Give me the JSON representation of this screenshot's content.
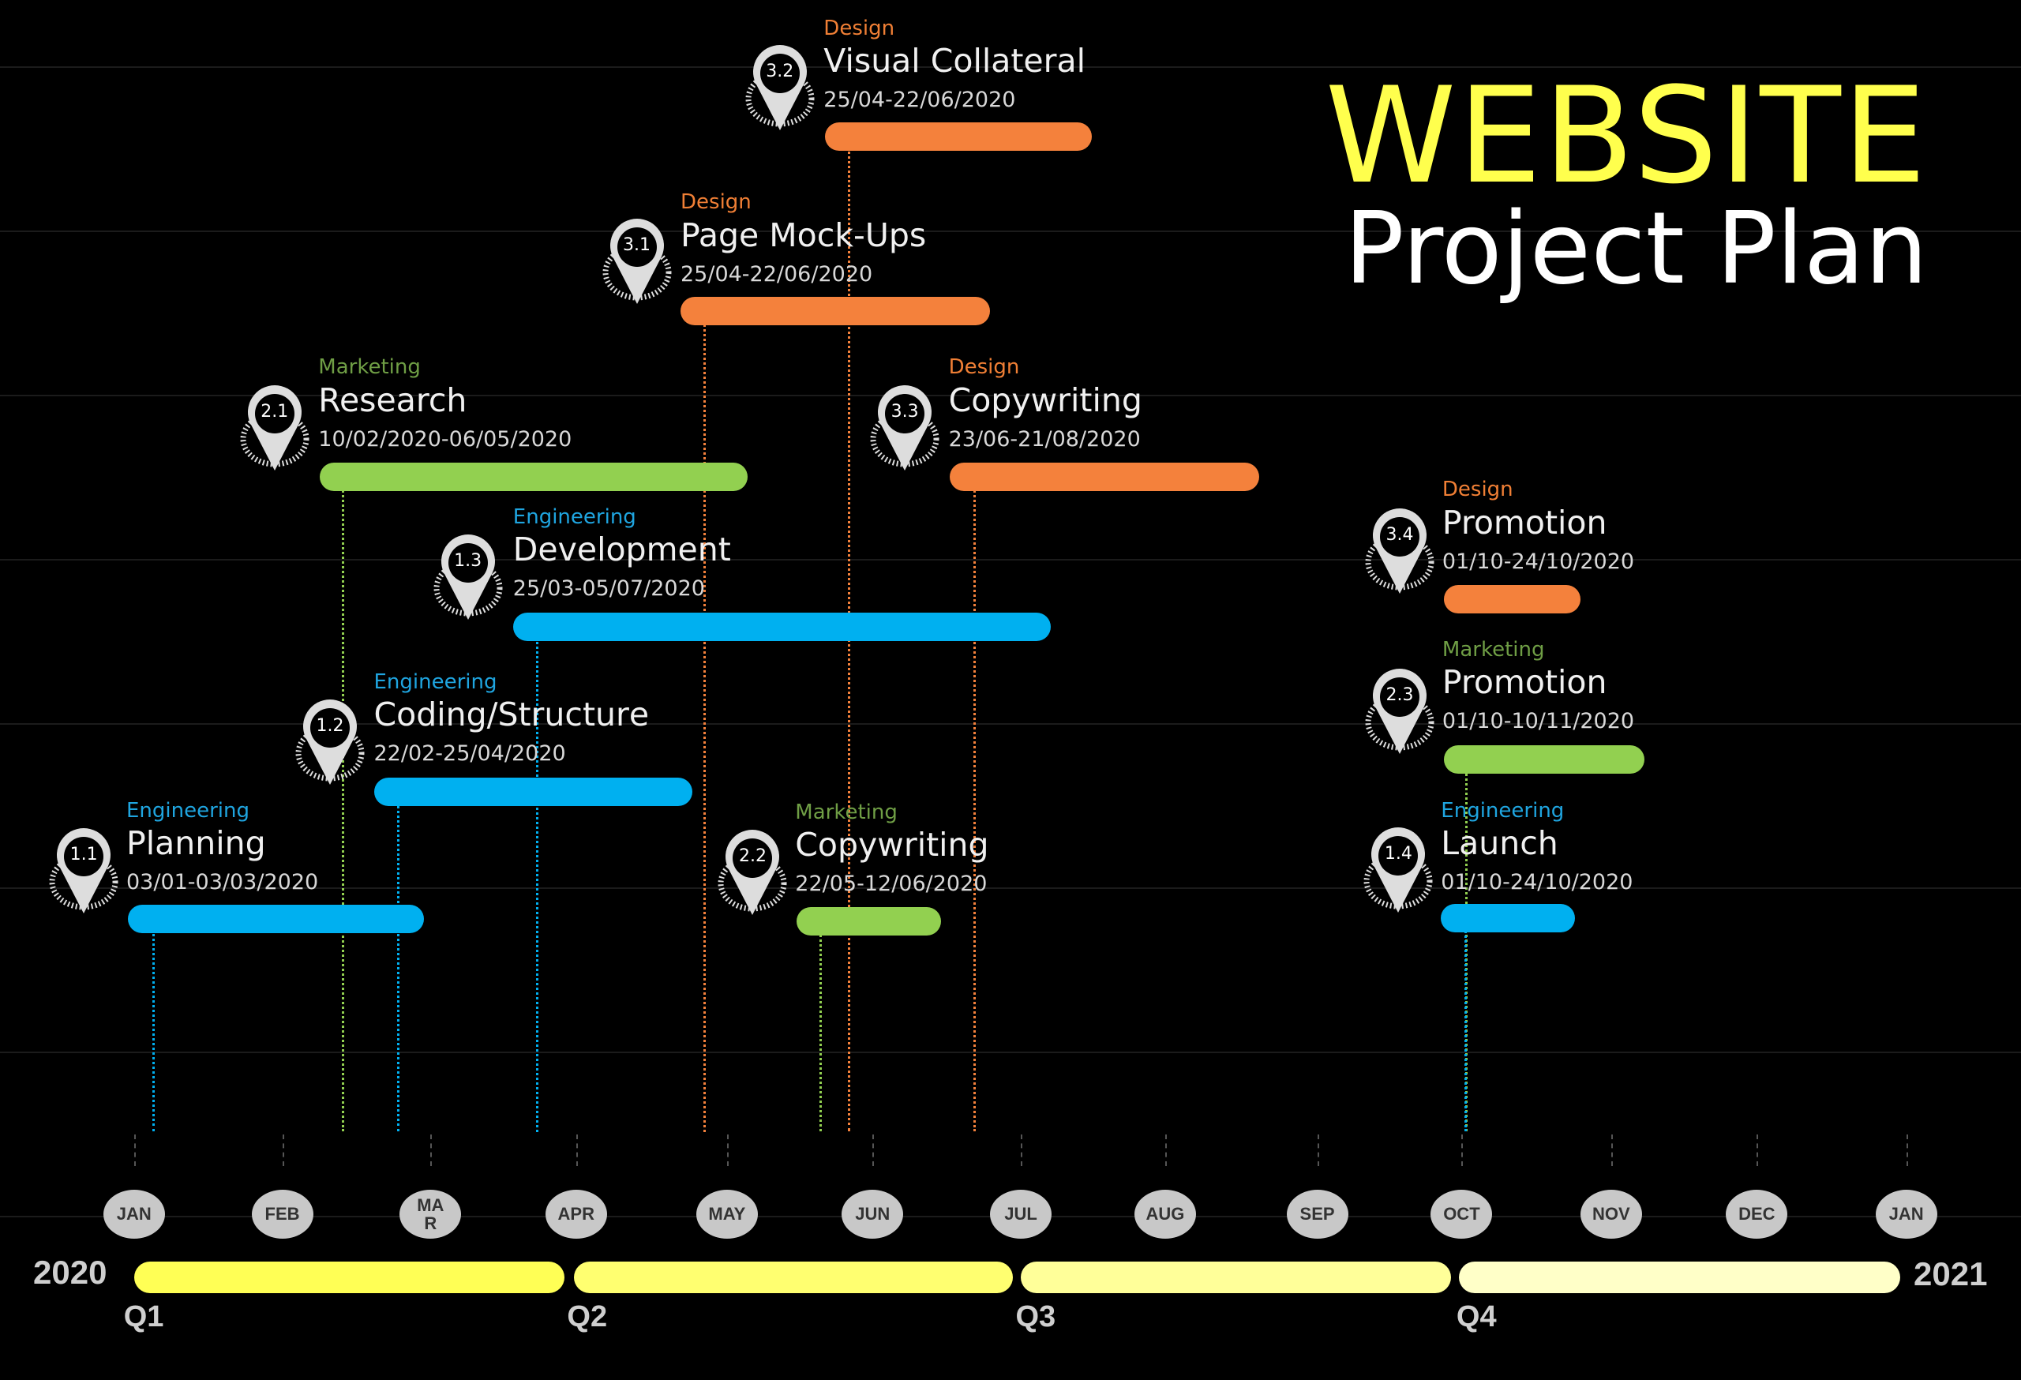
{
  "title": {
    "line1": "WEBSITE",
    "line2": "Project Plan"
  },
  "colors": {
    "Design": {
      "text": "#f07f35",
      "bar": "#f4813c"
    },
    "Marketing": {
      "text": "#6f9e45",
      "bar": "#92d050"
    },
    "Engineering": {
      "text": "#1fa5e0",
      "bar": "#00b0f0"
    }
  },
  "tasks": [
    {
      "id": "3.2",
      "category": "Design",
      "name": "Visual Collateral",
      "dates": "25/04-22/06/2020"
    },
    {
      "id": "3.1",
      "category": "Design",
      "name": "Page Mock-Ups",
      "dates": "25/04-22/06/2020"
    },
    {
      "id": "2.1",
      "category": "Marketing",
      "name": "Research",
      "dates": "10/02/2020-",
      "dates_hidden": "06/05/2020"
    },
    {
      "id": "3.3",
      "category": "Design",
      "name": "Copywriting",
      "dates": "23/06-21/08/2020"
    },
    {
      "id": "1.3",
      "category": "Engineering",
      "name": "Development",
      "dates": "25/03-05/07/2020"
    },
    {
      "id": "3.4",
      "category": "Design",
      "name": "Promotion",
      "dates": "01/10-24/10/2020"
    },
    {
      "id": "1.2",
      "category": "Engineering",
      "name": "Coding/Structur",
      "name_wrap": "e",
      "dates": "22/02-25/04/2020"
    },
    {
      "id": "2.3",
      "category": "Marketing",
      "name": "Promotion",
      "dates": "01/10-10/11/2020"
    },
    {
      "id": "1.1",
      "category": "Engineering",
      "name": "Planning",
      "dates": "03/01-03/03/2020"
    },
    {
      "id": "2.2",
      "category": "Marketing",
      "name": "Copywriting",
      "dates": "22/05-12/06/2020"
    },
    {
      "id": "1.4",
      "category": "Engineering",
      "name": "Launch",
      "dates": "01/10-24/10/2020"
    }
  ],
  "timeline": {
    "months": [
      "JAN",
      "FEB",
      "MA R",
      "APR",
      "MAY",
      "JUN",
      "JUL",
      "AUG",
      "SEP",
      "OCT",
      "NOV",
      "DEC",
      "JAN"
    ],
    "start_year": "2020",
    "end_year": "2021",
    "quarters": [
      {
        "label": "Q1",
        "color": "#ffff55"
      },
      {
        "label": "Q2",
        "color": "#ffff70"
      },
      {
        "label": "Q3",
        "color": "#ffff99"
      },
      {
        "label": "Q4",
        "color": "#ffffc8"
      }
    ]
  }
}
